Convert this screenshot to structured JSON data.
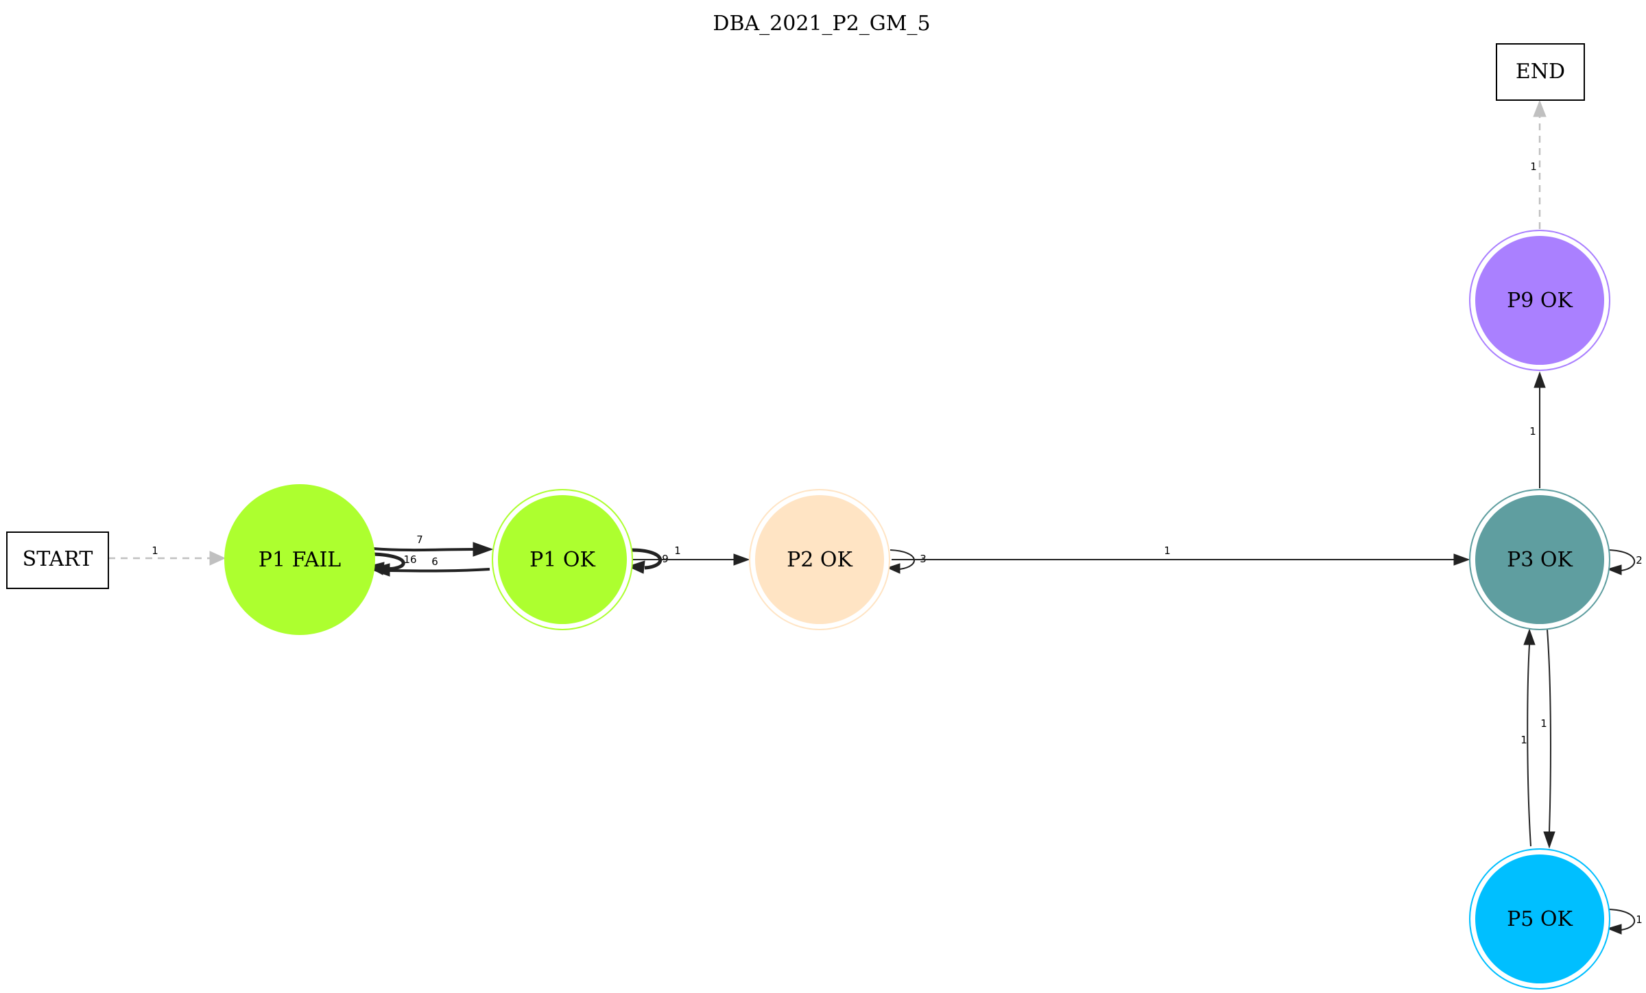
{
  "title": "DBA_2021_P2_GM_5",
  "colors": {
    "p1": "#adff2f",
    "p2": "#ffe4c4",
    "p3": "#5f9ea0",
    "p9": "#aa80ff",
    "p5": "#00bfff",
    "edge": "#222222",
    "terminal_edge": "#c0c0c0"
  },
  "nodes": {
    "start": "START",
    "end": "END",
    "p1_fail": "P1 FAIL",
    "p1_ok": "P1 OK",
    "p2_ok": "P2 OK",
    "p3_ok": "P3 OK",
    "p9_ok": "P9 OK",
    "p5_ok": "P5 OK"
  },
  "edges": {
    "start_to_p1_fail": "1",
    "p1_fail_to_p1_ok": "7",
    "p1_fail_self": "16",
    "p1_ok_to_p1_fail": "6",
    "p1_ok_self": "9",
    "p1_ok_to_p2_ok": "1",
    "p2_ok_self": "3",
    "p2_ok_to_p3_ok": "1",
    "p3_ok_self": "2",
    "p3_ok_to_p9_ok": "1",
    "p9_ok_to_end": "1",
    "p3_ok_to_p5_ok": "1",
    "p5_ok_to_p3_ok": "1",
    "p5_ok_self": "1"
  }
}
